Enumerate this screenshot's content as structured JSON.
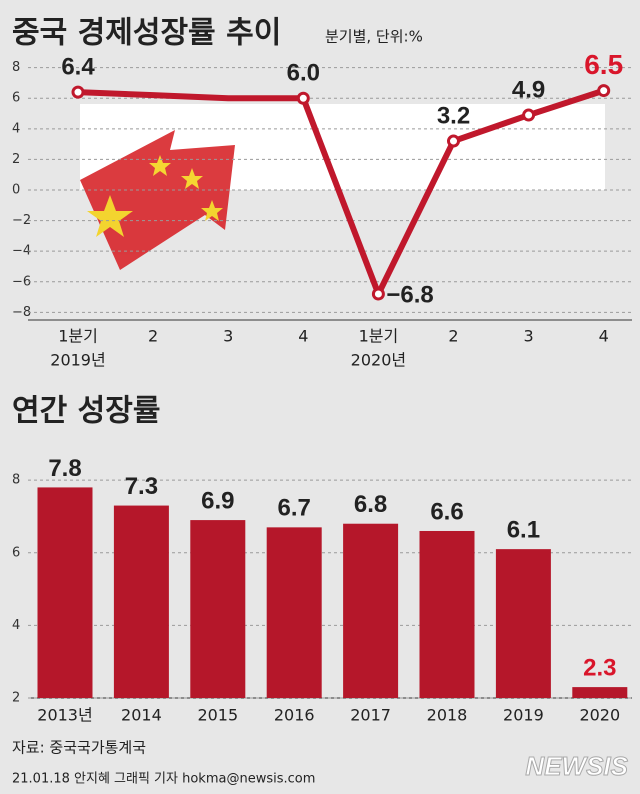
{
  "chart_data": [
    {
      "type": "line",
      "title": "중국 경제성장률 추이",
      "subtitle": "분기별, 단위:%",
      "categories": [
        "1분기",
        "2",
        "3",
        "4",
        "1분기",
        "2",
        "3",
        "4"
      ],
      "years": [
        "2019년",
        null,
        null,
        null,
        "2020년",
        null,
        null,
        null
      ],
      "values": [
        6.4,
        6.2,
        6.0,
        6.0,
        -6.8,
        3.2,
        4.9,
        6.5
      ],
      "value_labels": [
        "6.4",
        null,
        null,
        "6.0",
        "−6.8",
        "3.2",
        "4.9",
        "6.5"
      ],
      "color": "#c0182c",
      "highlight_color": "#d9162b",
      "highlight": 7,
      "ylim": [
        -8.5,
        8.5
      ],
      "yticks": [
        8,
        6,
        4,
        2,
        0,
        {
          "value": -2,
          "label": "−2"
        },
        {
          "value": -4,
          "label": "−4"
        },
        {
          "value": -6,
          "label": "−6"
        },
        {
          "value": -8,
          "label": "−8"
        }
      ],
      "grid": true
    },
    {
      "type": "bar",
      "title": "연간 성장률",
      "categories": [
        "2013년",
        "2014",
        "2015",
        "2016",
        "2017",
        "2018",
        "2019",
        "2020"
      ],
      "values": [
        7.8,
        7.3,
        6.9,
        6.7,
        6.8,
        6.6,
        6.1,
        2.3
      ],
      "color": "#b5172a",
      "highlight_color": "#d9162b",
      "highlight": 7,
      "ylim": [
        2,
        8.5
      ],
      "yticks": [
        8,
        6,
        4,
        2
      ],
      "grid": true
    }
  ],
  "source": "자료: 중국국가통계국",
  "credit": "21.01.18 안지혜 그래픽 기자 hokma@newsis.com",
  "logo": "NEWSIS"
}
